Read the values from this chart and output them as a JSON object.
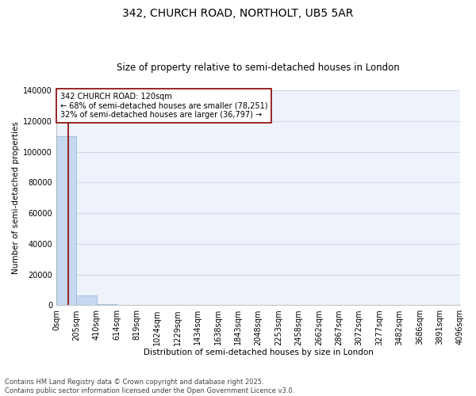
{
  "title_line1": "342, CHURCH ROAD, NORTHOLT, UB5 5AR",
  "title_line2": "Size of property relative to semi-detached houses in London",
  "xlabel": "Distribution of semi-detached houses by size in London",
  "ylabel": "Number of semi-detached properties",
  "footnote1": "Contains HM Land Registry data © Crown copyright and database right 2025.",
  "footnote2": "Contains public sector information licensed under the Open Government Licence v3.0.",
  "annotation_title": "342 CHURCH ROAD: 120sqm",
  "annotation_line2": "← 68% of semi-detached houses are smaller (78,251)",
  "annotation_line3": "32% of semi-detached houses are larger (36,797) →",
  "property_size": 120,
  "bar_edges": [
    0,
    205,
    410,
    614,
    819,
    1024,
    1229,
    1434,
    1638,
    1843,
    2048,
    2253,
    2458,
    2662,
    2867,
    3072,
    3277,
    3482,
    3686,
    3891,
    4096
  ],
  "bar_labels": [
    "0sqm",
    "205sqm",
    "410sqm",
    "614sqm",
    "819sqm",
    "1024sqm",
    "1229sqm",
    "1434sqm",
    "1638sqm",
    "1843sqm",
    "2048sqm",
    "2253sqm",
    "2458sqm",
    "2662sqm",
    "2867sqm",
    "3072sqm",
    "3277sqm",
    "3482sqm",
    "3686sqm",
    "3891sqm",
    "4096sqm"
  ],
  "bar_heights": [
    110000,
    6500,
    500,
    100,
    50,
    25,
    15,
    10,
    8,
    6,
    5,
    4,
    3,
    3,
    2,
    2,
    2,
    1,
    1,
    1
  ],
  "bar_color": "#c6d9f0",
  "bar_edge_color": "#8db4e2",
  "vline_color": "#8b0000",
  "vline_x": 120,
  "ylim": [
    0,
    140000
  ],
  "yticks": [
    0,
    20000,
    40000,
    60000,
    80000,
    100000,
    120000,
    140000
  ],
  "background_color": "#eef2fa",
  "grid_color": "#d0d8ec",
  "annotation_box_color": "#ffffff",
  "annotation_box_edge_color": "#8b0000",
  "title_fontsize": 10,
  "subtitle_fontsize": 8.5,
  "axis_label_fontsize": 7.5,
  "tick_fontsize": 7,
  "annotation_fontsize": 7,
  "footnote_fontsize": 6
}
